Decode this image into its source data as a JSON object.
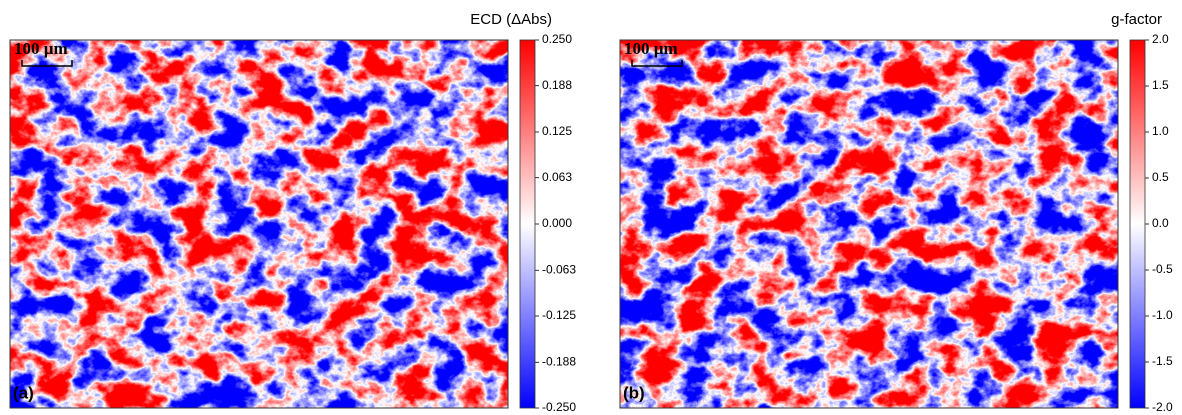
{
  "chart_data": [
    {
      "type": "heatmap",
      "panel_label": "(a)",
      "scale_bar_label": "100 µm",
      "colorbar_label": "ECD (ΔAbs)",
      "colormap": [
        "#0000ff",
        "#ffffff",
        "#ff0000"
      ],
      "zlim": [
        -0.25,
        0.25
      ],
      "zticks": [
        {
          "value": 0.25,
          "label": "0.250"
        },
        0.188,
        0.125,
        0.063,
        {
          "value": 0,
          "label": "0.000"
        },
        -0.063,
        -0.125,
        -0.188,
        {
          "value": -0.25,
          "label": "-0.250"
        }
      ]
    },
    {
      "type": "heatmap",
      "panel_label": "(b)",
      "scale_bar_label": "100 µm",
      "colorbar_label": "g-factor",
      "colormap": [
        "#0000ff",
        "#ffffff",
        "#ff0000"
      ],
      "zlim": [
        -2,
        2
      ],
      "zticks": [
        {
          "value": 2,
          "label": "2.0"
        },
        1.5,
        {
          "value": 1,
          "label": "1.0"
        },
        0.5,
        {
          "value": 0,
          "label": "0.0"
        },
        -0.5,
        {
          "value": -1,
          "label": "-1.0"
        },
        -1.5,
        {
          "value": -2,
          "label": "-2.0"
        }
      ]
    }
  ]
}
